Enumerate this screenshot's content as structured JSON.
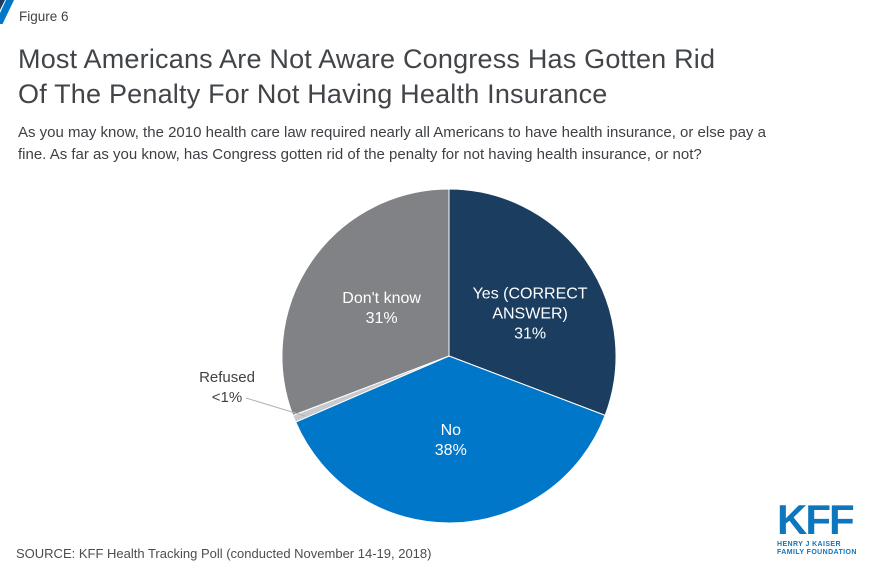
{
  "figure_label": "Figure 6",
  "header": {
    "title_lines": [
      "Most Americans Are Not Aware Congress Has Gotten Rid",
      "Of The Penalty For Not Having Health Insurance"
    ],
    "subtitle_lines": [
      "As you may know, the 2010 health care law required nearly all Americans to have health insurance, or else pay a",
      "fine. As far as you know, has Congress gotten rid of the penalty for not having health insurance, or not?"
    ]
  },
  "source": "SOURCE: KFF Health Tracking Poll (conducted November 14-19, 2018)",
  "logo": {
    "text": "KFF",
    "tagline_line1": "HENRY J KAISER",
    "tagline_line2": "FAMILY FOUNDATION",
    "color": "#0E76BC"
  },
  "colors": {
    "title_text": "#414549",
    "leader_line": "#B3B3B3",
    "flag_navy": "#1B3D60",
    "flag_blue": "#0077C8"
  },
  "chart_data": {
    "type": "pie",
    "title": "Most Americans Are Not Aware Congress Has Gotten Rid Of The Penalty For Not Having Health Insurance",
    "question": "As you may know, the 2010 health care law required nearly all Americans to have health insurance, or else pay a fine. As far as you know, has Congress gotten rid of the penalty for not having health insurance, or not?",
    "source": "KFF Health Tracking Poll (conducted November 14-19, 2018)",
    "legend_position": "none",
    "labels_on_slices": true,
    "start_angle_deg": 0,
    "direction": "clockwise",
    "slices": [
      {
        "label": "Yes (CORRECT ANSWER)",
        "display": "31%",
        "value": 31,
        "color": "#1B3D60",
        "label_color": "#FFFFFF",
        "lines": [
          "Yes (CORRECT",
          "ANSWER)",
          "31%"
        ]
      },
      {
        "label": "No",
        "display": "38%",
        "value": 38,
        "color": "#0077C8",
        "label_color": "#FFFFFF",
        "lines": [
          "No",
          "38%"
        ]
      },
      {
        "label": "Refused",
        "display": "<1%",
        "value": 0.7,
        "color": "#C9CACE",
        "label_color": "#3F4347",
        "lines": [
          "Refused",
          "<1%"
        ],
        "outside": true
      },
      {
        "label": "Don't know",
        "display": "31%",
        "value": 31,
        "color": "#808285",
        "label_color": "#FFFFFF",
        "lines": [
          "Don't know",
          "31%"
        ]
      }
    ]
  }
}
